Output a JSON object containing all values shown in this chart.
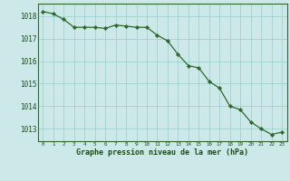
{
  "hours": [
    0,
    1,
    2,
    3,
    4,
    5,
    6,
    7,
    8,
    9,
    10,
    11,
    12,
    13,
    14,
    15,
    16,
    17,
    18,
    19,
    20,
    21,
    22,
    23
  ],
  "pressure": [
    1018.2,
    1018.1,
    1017.85,
    1017.5,
    1017.5,
    1017.5,
    1017.45,
    1017.6,
    1017.55,
    1017.5,
    1017.5,
    1017.15,
    1016.9,
    1016.3,
    1015.8,
    1015.7,
    1015.1,
    1014.8,
    1014.0,
    1013.85,
    1013.3,
    1013.0,
    1012.75,
    1012.85
  ],
  "xlim": [
    -0.5,
    23.5
  ],
  "ylim": [
    1012.45,
    1018.55
  ],
  "yticks": [
    1013,
    1014,
    1015,
    1016,
    1017,
    1018
  ],
  "xticks": [
    0,
    1,
    2,
    3,
    4,
    5,
    6,
    7,
    8,
    9,
    10,
    11,
    12,
    13,
    14,
    15,
    16,
    17,
    18,
    19,
    20,
    21,
    22,
    23
  ],
  "line_color": "#2d6a2d",
  "marker_color": "#2d6a2d",
  "bg_color": "#cce8e8",
  "grid_color": "#99cccc",
  "xlabel": "Graphe pression niveau de la mer (hPa)",
  "xlabel_color": "#1a4d1a",
  "tick_color": "#1a4d1a",
  "spine_color": "#336633",
  "xlabel_fontsize": 6.0,
  "ytick_fontsize": 5.5,
  "xtick_fontsize": 4.2
}
